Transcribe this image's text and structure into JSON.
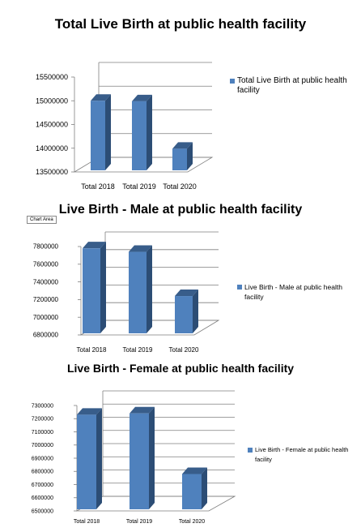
{
  "chart_data": [
    {
      "type": "bar",
      "title": "Total Live Birth at public health facility",
      "categories": [
        "Total 2018",
        "Total 2019",
        "Total 2020"
      ],
      "series": [
        {
          "name": "Total Live Birth at public health facility",
          "values": [
            15000000,
            14990000,
            13990000
          ]
        }
      ],
      "ylim": [
        13500000,
        15500000
      ],
      "yticks": [
        "13500000",
        "14000000",
        "14500000",
        "15000000",
        "15500000"
      ],
      "legend": "right",
      "grid": true
    },
    {
      "type": "bar",
      "title": "Live Birth - Male at public health facility",
      "categories": [
        "Total 2018",
        "Total 2019",
        "Total 2020"
      ],
      "series": [
        {
          "name": "Live Birth - Male at public health facility",
          "values": [
            7780000,
            7740000,
            7240000
          ]
        }
      ],
      "ylim": [
        6800000,
        7800000
      ],
      "yticks": [
        "6800000",
        "7000000",
        "7200000",
        "7400000",
        "7600000",
        "7800000"
      ],
      "legend": "right",
      "grid": true
    },
    {
      "type": "bar",
      "title": "Live Birth - Female at public health facility",
      "categories": [
        "Total 2018",
        "Total 2019",
        "Total 2020"
      ],
      "series": [
        {
          "name": "Live Birth - Female at public health facility",
          "values": [
            7230000,
            7240000,
            6780000
          ]
        }
      ],
      "ylim": [
        6500000,
        7300000
      ],
      "yticks": [
        "6500000",
        "6600000",
        "6700000",
        "6800000",
        "6900000",
        "7000000",
        "7100000",
        "7200000",
        "7300000"
      ],
      "legend": "right",
      "grid": true
    }
  ],
  "chart_area_label": "Chart Area",
  "colors": {
    "bar_front": "#4f81bd",
    "bar_side": "#2c4d75",
    "bar_top": "#385d8a",
    "grid": "#7f7f7f"
  }
}
